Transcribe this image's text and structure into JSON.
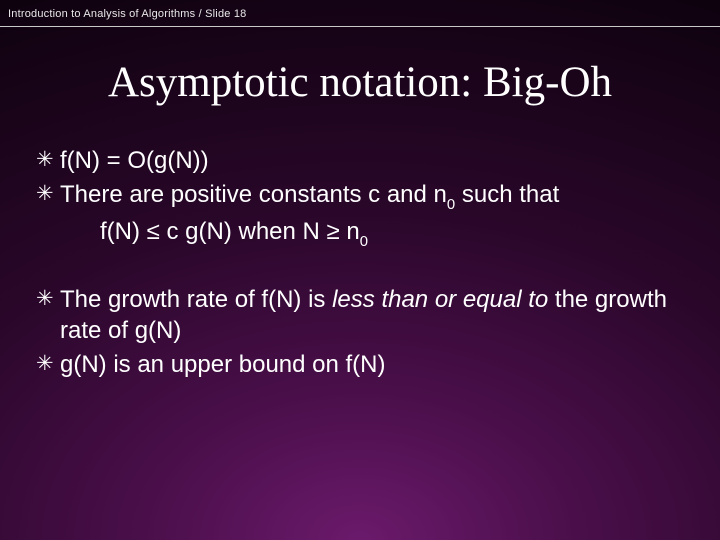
{
  "header": {
    "text": "Introduction to Analysis of Algorithms / Slide 18",
    "fontsize": 11,
    "color": "#e8e8e8"
  },
  "title": {
    "text": "Asymptotic notation: Big-Oh",
    "font_family": "Times New Roman",
    "fontsize": 43,
    "color": "#ffffff"
  },
  "bullets": {
    "mark": "✳",
    "mark_color": "#ffffff",
    "b1": "f(N) = O(g(N))",
    "b2_a": "There are positive constants c and n",
    "b2_sub": "0",
    "b2_b": " such that",
    "b2_indent_a": "f(N) ≤ c g(N) when N ≥ n",
    "b2_indent_sub": "0",
    "b3_a": "The growth rate of f(N) is ",
    "b3_i": "less than or equal to",
    "b3_b": " the growth rate of g(N)",
    "b4": "g(N) is an upper bound on f(N)"
  },
  "styling": {
    "slide_width": 720,
    "slide_height": 540,
    "background_gradient": {
      "type": "radial",
      "center": "50% 100%",
      "stops": [
        "#6b1a6b",
        "#4a0f4a",
        "#2a072a",
        "#0e020e"
      ]
    },
    "body_font": "Arial",
    "body_fontsize": 24,
    "body_color": "#ffffff",
    "rule_color": "#c9c9c9"
  }
}
